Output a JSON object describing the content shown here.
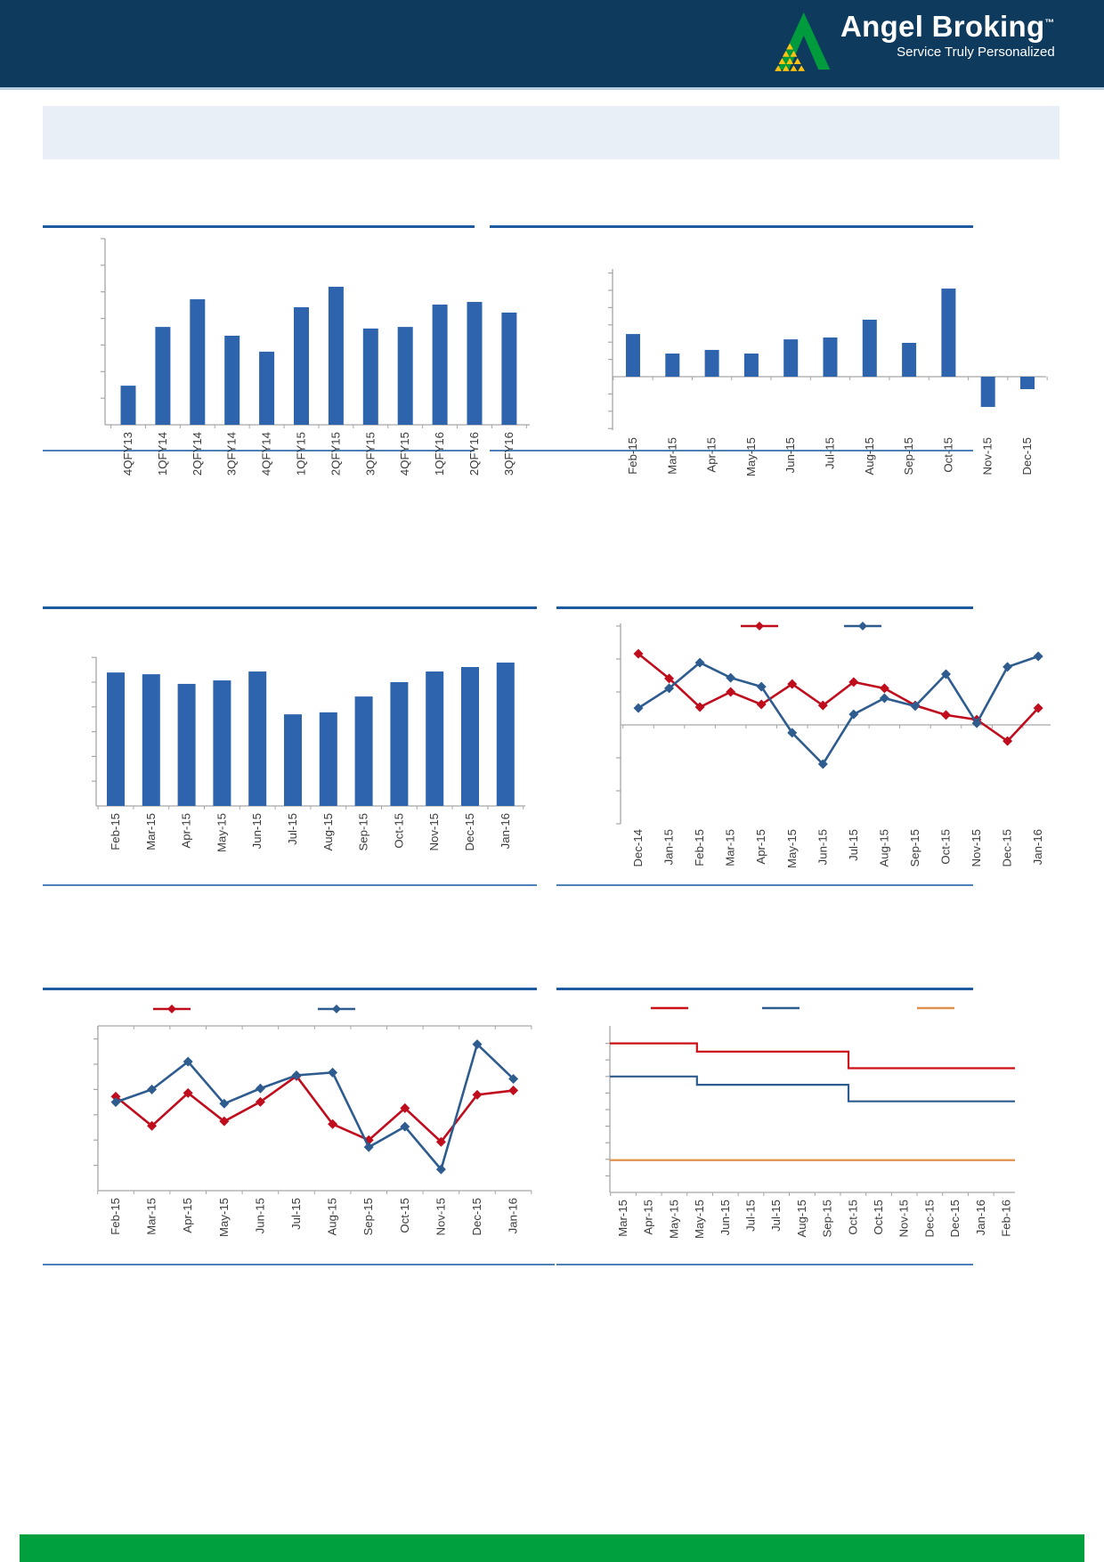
{
  "header": {
    "brand_name": "Angel Broking",
    "trademark": "™",
    "tagline": "Service Truly Personalized",
    "bar_color": "#0e3a5e",
    "logo_colors": {
      "triangle_green": "#009b3c",
      "pyramid_yellow": "#ffc20e"
    }
  },
  "summary_panel": {
    "background": "#e9eff7"
  },
  "footer": {
    "bar_color": "#00a13c"
  },
  "colors": {
    "bar_blue": "#2e64ad",
    "line_red": "#c00d1e",
    "line_blue": "#2e5c8f",
    "step_orange": "#e0914d",
    "axis_gray": "#a6a6a6",
    "label_gray": "#3c3c3c",
    "rule_blue": "#1e5b9e",
    "rule_light_blue": "#4d80b6"
  },
  "chart_data": [
    {
      "id": "bar_quarterly",
      "name": "quarterly-bar-chart",
      "type": "bar",
      "categories": [
        "4QFY13",
        "1QFY14",
        "2QFY14",
        "3QFY14",
        "4QFY14",
        "1QFY15",
        "2QFY15",
        "3QFY15",
        "4QFY15",
        "1QFY16",
        "2QFY16",
        "3QFY16"
      ],
      "values": [
        1.47,
        3.68,
        4.72,
        3.35,
        2.75,
        4.42,
        5.19,
        3.62,
        3.68,
        4.52,
        4.62,
        4.22
      ],
      "bar_color": "#2e64ad",
      "ylim": [
        0,
        7
      ],
      "y_tick_step": 1,
      "y_axis_labels_visible": false,
      "xlabel": "",
      "ylabel": ""
    },
    {
      "id": "bar_monthly_signed",
      "name": "monthly-bar-chart-with-negatives",
      "type": "bar",
      "categories": [
        "Feb-15",
        "Mar-15",
        "Apr-15",
        "May-15",
        "Jun-15",
        "Jul-15",
        "Aug-15",
        "Sep-15",
        "Oct-15",
        "Nov-15",
        "Dec-15"
      ],
      "values": [
        2.47,
        1.34,
        1.55,
        1.34,
        2.16,
        2.27,
        3.3,
        1.96,
        5.1,
        -1.75,
        -0.72
      ],
      "bar_color": "#2e64ad",
      "ylim": [
        -3,
        6
      ],
      "y_tick_step": 1,
      "y_axis_labels_visible": false,
      "xlabel": "",
      "ylabel": ""
    },
    {
      "id": "bar_monthly_level",
      "name": "monthly-level-bar-chart",
      "type": "bar",
      "categories": [
        "Feb-15",
        "Mar-15",
        "Apr-15",
        "May-15",
        "Jun-15",
        "Jul-15",
        "Aug-15",
        "Sep-15",
        "Oct-15",
        "Nov-15",
        "Dec-15",
        "Jan-16"
      ],
      "values": [
        5.39,
        5.32,
        4.93,
        5.07,
        5.43,
        3.7,
        3.78,
        4.42,
        5.0,
        5.43,
        5.61,
        5.79
      ],
      "bar_color": "#2e64ad",
      "ylim": [
        0,
        6
      ],
      "y_tick_step": 1,
      "y_axis_labels_visible": false,
      "xlabel": "",
      "ylabel": ""
    },
    {
      "id": "line_two_series",
      "name": "dual-line-chart-signed",
      "type": "line",
      "categories": [
        "Dec-14",
        "Jan-15",
        "Feb-15",
        "Mar-15",
        "Apr-15",
        "May-15",
        "Jun-15",
        "Jul-15",
        "Aug-15",
        "Sep-15",
        "Oct-15",
        "Nov-15",
        "Dec-15",
        "Jan-16"
      ],
      "series": [
        {
          "name": "red-series",
          "color": "#c00d1e",
          "values": [
            2.16,
            1.41,
            0.54,
            1.0,
            0.62,
            1.24,
            0.59,
            1.3,
            1.11,
            0.59,
            0.3,
            0.16,
            -0.49,
            0.51
          ]
        },
        {
          "name": "blue-series",
          "color": "#2e5c8f",
          "values": [
            0.51,
            1.11,
            1.89,
            1.43,
            1.16,
            -0.24,
            -1.19,
            0.32,
            0.81,
            0.57,
            1.54,
            0.05,
            1.76,
            2.08
          ]
        }
      ],
      "ylim": [
        -3,
        3
      ],
      "y_tick_step": 1,
      "y_axis_labels_visible": false,
      "legend": {
        "position": "top",
        "labels_visible": false,
        "entries": [
          {
            "label": "",
            "color": "#c00d1e"
          },
          {
            "label": "",
            "color": "#2e5c8f"
          }
        ]
      },
      "xlabel": "",
      "ylabel": ""
    },
    {
      "id": "line_two_series_2",
      "name": "dual-line-chart-monthly",
      "type": "line",
      "categories": [
        "Feb-15",
        "Mar-15",
        "Apr-15",
        "May-15",
        "Jun-15",
        "Jul-15",
        "Aug-15",
        "Sep-15",
        "Oct-15",
        "Nov-15",
        "Dec-15",
        "Jan-16"
      ],
      "series": [
        {
          "name": "red-series",
          "color": "#c00d1e",
          "values": [
            3.72,
            2.56,
            3.86,
            2.74,
            3.51,
            4.53,
            2.63,
            2.0,
            3.26,
            1.93,
            3.79,
            3.96
          ]
        },
        {
          "name": "blue-series",
          "color": "#2e5c8f",
          "values": [
            3.5,
            4.0,
            5.1,
            3.44,
            4.04,
            4.56,
            4.67,
            1.72,
            2.53,
            0.84,
            5.79,
            4.42
          ]
        }
      ],
      "ylim": [
        0,
        6.5
      ],
      "y_tick_step": 1,
      "y_axis_labels_visible": false,
      "legend": {
        "position": "top",
        "labels_visible": false,
        "entries": [
          {
            "label": "",
            "color": "#c00d1e"
          },
          {
            "label": "",
            "color": "#2e5c8f"
          }
        ]
      },
      "xlabel": "",
      "ylabel": ""
    },
    {
      "id": "step_three_series",
      "name": "triple-step-line-chart",
      "type": "step-line",
      "categories": [
        "Mar-15",
        "Apr-15",
        "May-15",
        "May-15",
        "Jun-15",
        "Jul-15",
        "Jul-15",
        "Aug-15",
        "Sep-15",
        "Oct-15",
        "Oct-15",
        "Nov-15",
        "Dec-15",
        "Dec-15",
        "Jan-16",
        "Feb-16"
      ],
      "series": [
        {
          "name": "red-series",
          "color": "#cc1016",
          "levels": [
            9,
            8.5,
            7.5
          ],
          "step_positions": [
            0.215,
            0.589
          ]
        },
        {
          "name": "blue-series",
          "color": "#2e5c8f",
          "levels": [
            7,
            6.5,
            5.5
          ],
          "step_positions": [
            0.215,
            0.589
          ]
        },
        {
          "name": "orange-series",
          "color": "#e0914d",
          "levels": [
            1.95
          ],
          "step_positions": []
        }
      ],
      "ylim": [
        0,
        10
      ],
      "y_tick_step": 1,
      "y_axis_labels_visible": false,
      "legend": {
        "position": "top",
        "labels_visible": false,
        "entries": [
          {
            "label": "",
            "color": "#cc1016"
          },
          {
            "label": "",
            "color": "#2e5c8f"
          },
          {
            "label": "",
            "color": "#e0914d"
          }
        ]
      },
      "xlabel": "",
      "ylabel": ""
    }
  ]
}
